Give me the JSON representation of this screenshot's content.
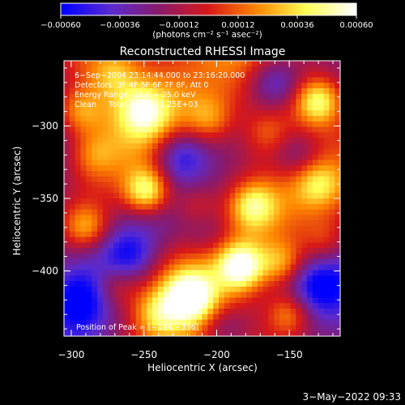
{
  "chart_data": {
    "type": "heatmap",
    "title": "Reconstructed RHESSI Image",
    "xlabel": "Heliocentric X (arcsec)",
    "ylabel": "Heliocentric Y (arcsec)",
    "xlim": [
      -305,
      -115
    ],
    "ylim": [
      -445,
      -255
    ],
    "x_ticks": [
      -300,
      -250,
      -200,
      -150
    ],
    "x_tick_labels": [
      "−300",
      "−250",
      "−200",
      "−150"
    ],
    "y_ticks": [
      -300,
      -350,
      -400
    ],
    "y_tick_labels": [
      "−300",
      "−350",
      "−400"
    ],
    "colorbar": {
      "range": [
        -0.0006,
        0.0006
      ],
      "ticks": [
        -0.0006,
        -0.00036,
        -0.00012,
        0.00012,
        0.00036,
        0.0006
      ],
      "tick_labels": [
        "−0.00060",
        "−0.00036",
        "−0.00012",
        "0.00012",
        "0.00036",
        "0.00060"
      ],
      "units": "(photons cm⁻² s⁻¹ asec⁻²)",
      "colormap": [
        "#0000ff",
        "#5a2bd0",
        "#8a1a6b",
        "#d81818",
        "#ff8800",
        "#ffff55",
        "#ffffff"
      ]
    },
    "annotations": [
      "6−Sep−2004 23:14:44.000 to 23:16:20.000",
      "Detectors: 3F 4F 5F 6F 7F 8F, Att 0",
      "Energy Range: 12.0 − 25.0 keV",
      "Clean     Total counts: 1.25E+03"
    ],
    "peak_label": "Position of Peak = [−184,−396]",
    "peak": [
      -184,
      -396
    ],
    "sources": [
      {
        "x": -248,
        "y": -345,
        "value": 0.0006
      },
      {
        "x": -183,
        "y": -397,
        "value": 0.0006
      },
      {
        "x": -218,
        "y": -418,
        "value": 0.00055
      },
      {
        "x": -130,
        "y": -283,
        "value": 0.0005
      },
      {
        "x": -290,
        "y": -370,
        "value": 0.0004
      },
      {
        "x": -250,
        "y": -290,
        "value": 0.00035
      },
      {
        "x": -175,
        "y": -355,
        "value": 0.0004
      },
      {
        "x": -150,
        "y": -430,
        "value": 0.0004
      },
      {
        "x": -155,
        "y": -395,
        "value": 0.00035
      },
      {
        "x": -205,
        "y": -295,
        "value": 0.00025
      },
      {
        "x": -130,
        "y": -340,
        "value": 0.0003
      },
      {
        "x": -295,
        "y": -290,
        "value": 0.0003
      },
      {
        "x": -270,
        "y": -410,
        "value": 0.00025
      },
      {
        "x": -215,
        "y": -355,
        "value": 0.0002
      },
      {
        "x": -165,
        "y": -305,
        "value": 0.0002
      },
      {
        "x": -285,
        "y": -320,
        "value": 0.0002
      },
      {
        "x": -240,
        "y": -430,
        "value": 0.00025
      },
      {
        "x": -125,
        "y": -380,
        "value": 0.0002
      },
      {
        "x": -270,
        "y": -265,
        "value": 0.0002
      }
    ],
    "negative_regions": [
      {
        "x": -225,
        "y": -320,
        "value": -0.0004
      },
      {
        "x": -160,
        "y": -270,
        "value": -0.0004
      },
      {
        "x": -145,
        "y": -320,
        "value": -0.0003
      },
      {
        "x": -260,
        "y": -390,
        "value": -0.0003
      },
      {
        "x": -195,
        "y": -440,
        "value": -0.0003
      },
      {
        "x": -130,
        "y": -410,
        "value": -0.0003
      },
      {
        "x": -295,
        "y": -420,
        "value": -0.00025
      },
      {
        "x": -205,
        "y": -375,
        "value": -0.0002
      }
    ]
  },
  "footer": {
    "timestamp": "3−May−2022 09:33"
  }
}
